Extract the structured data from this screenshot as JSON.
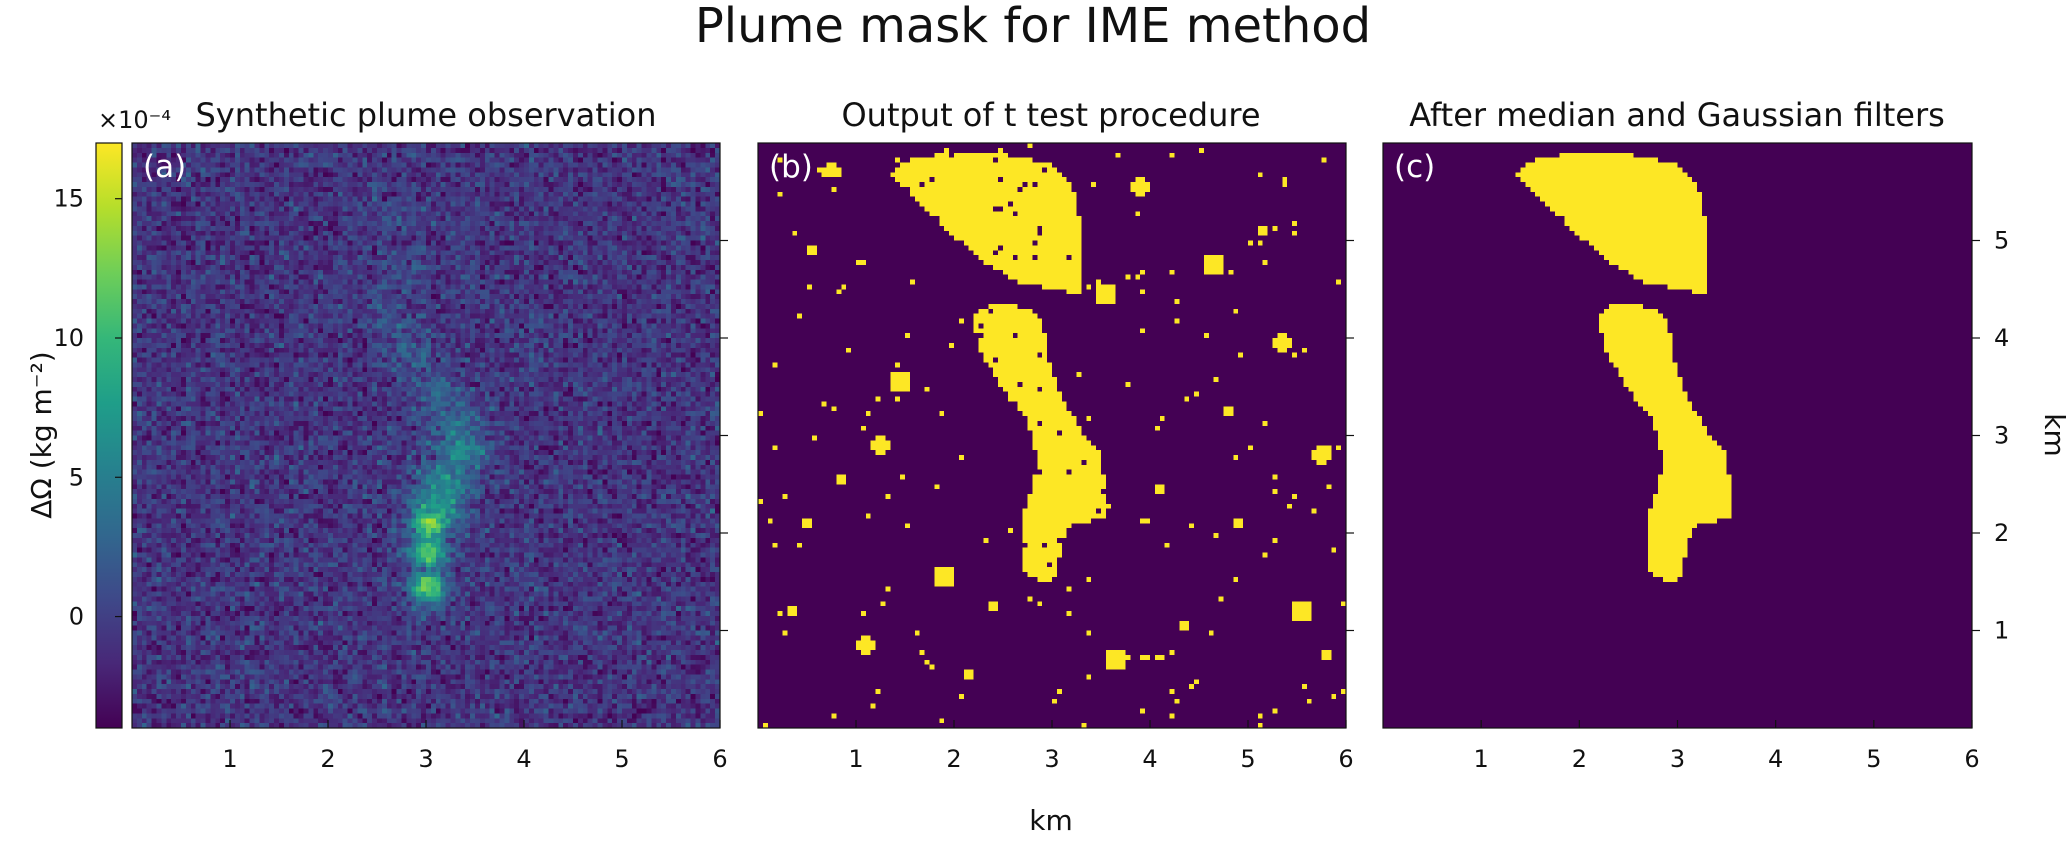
{
  "chart_data": {
    "type": "heatmap",
    "title": "Plume mask for IME method",
    "colors": {
      "background": "#ffffff",
      "axis": "#111111",
      "mask_off": "#440154",
      "mask_on": "#fde725",
      "viridis_stops": [
        "#440154",
        "#482878",
        "#3e4989",
        "#31688e",
        "#26828e",
        "#1f9e89",
        "#35b779",
        "#6ece58",
        "#b5de2b",
        "#fde725"
      ]
    },
    "colorbar": {
      "label": "ΔΩ (kg m⁻²)",
      "multiplier": "×10⁻⁴",
      "range": [
        -4,
        17
      ],
      "ticks": [
        {
          "value": 0,
          "label": "0"
        },
        {
          "value": 5,
          "label": "5"
        },
        {
          "value": 10,
          "label": "10"
        },
        {
          "value": 15,
          "label": "15"
        }
      ]
    },
    "xlabel": "km",
    "ylabel": "km",
    "xlim": [
      0,
      6
    ],
    "ylim": [
      0,
      6
    ],
    "x_ticks": [
      {
        "value": 1,
        "label": "1"
      },
      {
        "value": 2,
        "label": "2"
      },
      {
        "value": 3,
        "label": "3"
      },
      {
        "value": 4,
        "label": "4"
      },
      {
        "value": 5,
        "label": "5"
      },
      {
        "value": 6,
        "label": "6"
      }
    ],
    "y_ticks": [
      {
        "value": 1,
        "label": "1"
      },
      {
        "value": 2,
        "label": "2"
      },
      {
        "value": 3,
        "label": "3"
      },
      {
        "value": 4,
        "label": "4"
      },
      {
        "value": 5,
        "label": "5"
      }
    ],
    "panels": [
      {
        "id": "a",
        "label": "(a)",
        "title": "Synthetic plume observation",
        "kind": "continuous",
        "plume_path_km": [
          {
            "x": 3.02,
            "y": 1.45,
            "value": 13
          },
          {
            "x": 3.03,
            "y": 1.8,
            "value": 12
          },
          {
            "x": 3.03,
            "y": 2.1,
            "value": 14
          },
          {
            "x": 3.12,
            "y": 2.25,
            "value": 9
          },
          {
            "x": 3.22,
            "y": 2.5,
            "value": 7.5
          },
          {
            "x": 3.35,
            "y": 2.8,
            "value": 6
          },
          {
            "x": 3.3,
            "y": 3.1,
            "value": 4.5
          },
          {
            "x": 3.1,
            "y": 3.4,
            "value": 3
          },
          {
            "x": 2.85,
            "y": 3.8,
            "value": 2.2
          },
          {
            "x": 2.7,
            "y": 4.2,
            "value": 1.8
          },
          {
            "x": 2.8,
            "y": 4.7,
            "value": 1.5
          },
          {
            "x": 2.6,
            "y": 5.2,
            "value": 1.2
          }
        ]
      },
      {
        "id": "b",
        "label": "(b)",
        "title": "Output of t test procedure",
        "kind": "mask_noisy"
      },
      {
        "id": "c",
        "label": "(c)",
        "title": "After median and Gaussian filters",
        "kind": "mask_clean"
      }
    ],
    "mask_regions_km": {
      "upper": [
        [
          1.35,
          5.68
        ],
        [
          1.5,
          5.82
        ],
        [
          1.85,
          5.88
        ],
        [
          2.2,
          5.9
        ],
        [
          2.55,
          5.88
        ],
        [
          3.0,
          5.78
        ],
        [
          3.22,
          5.55
        ],
        [
          3.3,
          5.1
        ],
        [
          3.3,
          4.45
        ],
        [
          3.0,
          4.5
        ],
        [
          2.65,
          4.58
        ],
        [
          2.35,
          4.75
        ],
        [
          2.05,
          5.0
        ],
        [
          1.75,
          5.3
        ],
        [
          1.5,
          5.5
        ]
      ],
      "lower": [
        [
          2.2,
          4.25
        ],
        [
          2.35,
          4.35
        ],
        [
          2.6,
          4.35
        ],
        [
          2.85,
          4.25
        ],
        [
          2.95,
          4.0
        ],
        [
          2.98,
          3.7
        ],
        [
          3.12,
          3.35
        ],
        [
          3.3,
          3.05
        ],
        [
          3.5,
          2.8
        ],
        [
          3.55,
          2.45
        ],
        [
          3.55,
          2.15
        ],
        [
          3.4,
          2.12
        ],
        [
          3.2,
          2.1
        ],
        [
          3.1,
          1.9
        ],
        [
          3.05,
          1.55
        ],
        [
          2.95,
          1.5
        ],
        [
          2.75,
          1.55
        ],
        [
          2.68,
          1.75
        ],
        [
          2.7,
          2.15
        ],
        [
          2.8,
          2.45
        ],
        [
          2.85,
          2.75
        ],
        [
          2.75,
          3.15
        ],
        [
          2.55,
          3.4
        ],
        [
          2.4,
          3.65
        ],
        [
          2.25,
          3.9
        ]
      ]
    },
    "noise_blobs_km": [
      {
        "x": 0.35,
        "y": 1.2
      },
      {
        "x": 0.85,
        "y": 2.55
      },
      {
        "x": 1.25,
        "y": 2.9
      },
      {
        "x": 1.9,
        "y": 1.55
      },
      {
        "x": 2.15,
        "y": 0.55
      },
      {
        "x": 0.55,
        "y": 4.9
      },
      {
        "x": 0.75,
        "y": 5.72
      },
      {
        "x": 1.45,
        "y": 3.55
      },
      {
        "x": 4.8,
        "y": 3.25
      },
      {
        "x": 5.15,
        "y": 5.1
      },
      {
        "x": 5.35,
        "y": 3.95
      },
      {
        "x": 5.55,
        "y": 1.2
      },
      {
        "x": 4.1,
        "y": 2.45
      },
      {
        "x": 4.35,
        "y": 1.05
      },
      {
        "x": 3.9,
        "y": 5.55
      },
      {
        "x": 4.65,
        "y": 4.75
      },
      {
        "x": 5.8,
        "y": 0.75
      },
      {
        "x": 0.5,
        "y": 2.1
      },
      {
        "x": 1.1,
        "y": 0.85
      },
      {
        "x": 3.65,
        "y": 0.7
      },
      {
        "x": 2.4,
        "y": 1.25
      },
      {
        "x": 4.9,
        "y": 2.1
      },
      {
        "x": 5.75,
        "y": 2.8
      },
      {
        "x": 3.55,
        "y": 4.45
      }
    ]
  }
}
